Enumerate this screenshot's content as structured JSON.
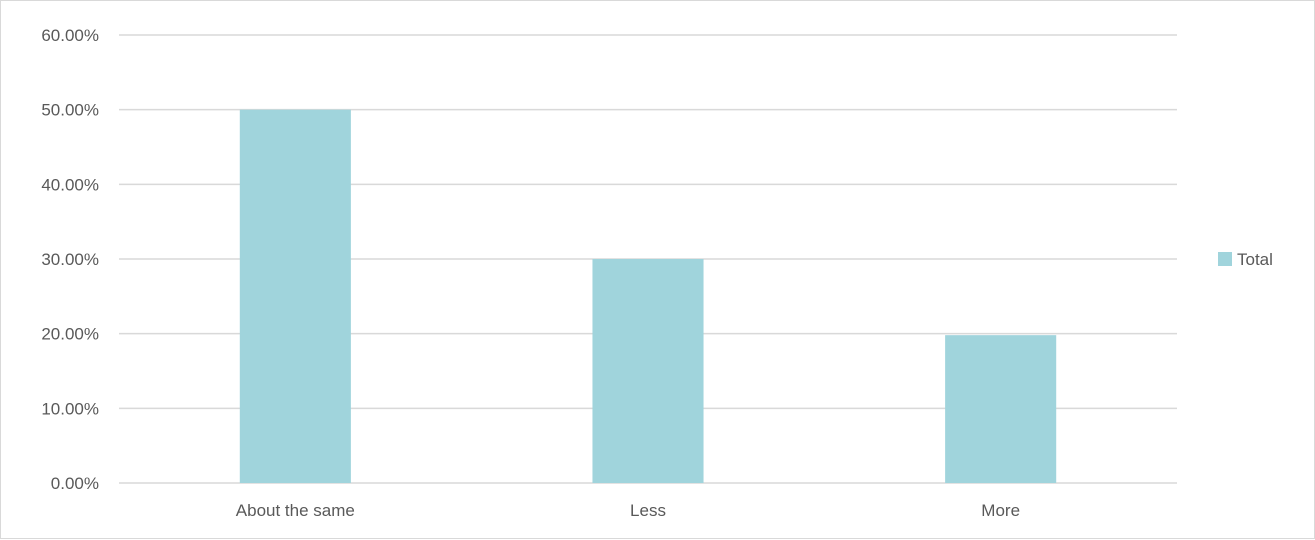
{
  "chart_data": {
    "type": "bar",
    "categories": [
      "About the same",
      "Less",
      "More"
    ],
    "series": [
      {
        "name": "Total",
        "values": [
          50.0,
          30.0,
          19.8
        ],
        "color": "#a0d4dc"
      }
    ],
    "ylim": [
      0,
      60
    ],
    "yticks": [
      "0.00%",
      "10.00%",
      "20.00%",
      "30.00%",
      "40.00%",
      "50.00%",
      "60.00%"
    ],
    "ytick_values": [
      0,
      10,
      20,
      30,
      40,
      50,
      60
    ],
    "y_unit": "percent",
    "grid": true,
    "gridline_color": "#d9d9d9",
    "legend_position": "right",
    "title": "",
    "xlabel": "",
    "ylabel": ""
  }
}
